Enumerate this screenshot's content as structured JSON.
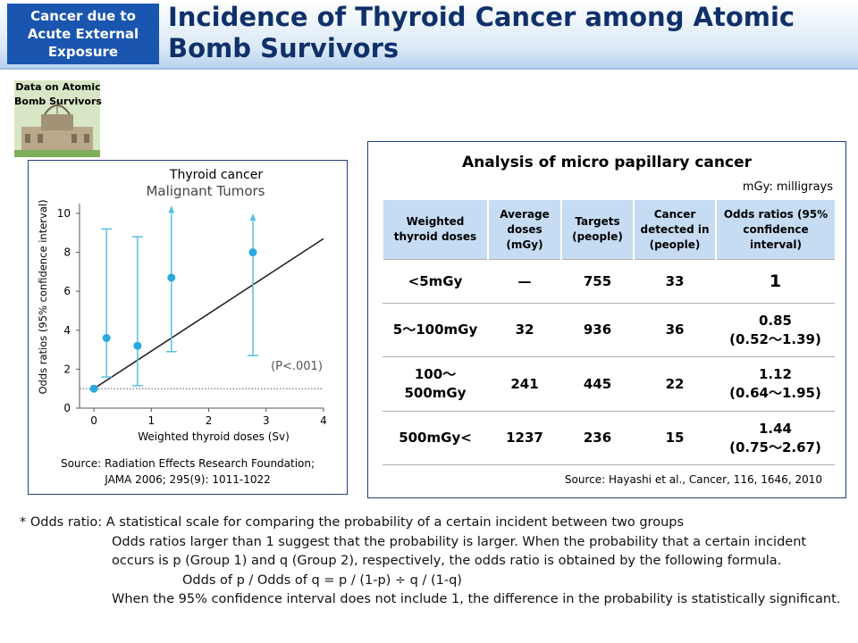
{
  "header": {
    "tag": "Cancer due to Acute External Exposure",
    "title": "Incidence of Thyroid Cancer among Atomic Bomb Survivors"
  },
  "icon_label": "Data on Atomic Bomb Survivors",
  "chart_data": {
    "type": "scatter",
    "title": "Thyroid cancer",
    "subtitle": "Malignant Tumors",
    "xlabel": "Weighted thyroid doses (Sv)",
    "ylabel": "Odds ratios (95% confidence interval)",
    "xlim": [
      -0.25,
      4.0
    ],
    "ylim": [
      0,
      10.5
    ],
    "xticks": [
      0,
      1,
      2,
      3,
      4
    ],
    "yticks": [
      0,
      2,
      4,
      6,
      8,
      10
    ],
    "series": [
      {
        "color": "#29a9e0",
        "x": [
          0,
          0.22,
          0.76,
          1.35,
          2.77
        ],
        "y": [
          1,
          3.6,
          3.2,
          6.7,
          8.0
        ],
        "lower": [
          1,
          1.6,
          1.15,
          2.9,
          2.7
        ],
        "upper": [
          1,
          9.2,
          8.8,
          10.3,
          9.9
        ],
        "upper_open": [
          false,
          false,
          false,
          true,
          true
        ],
        "error_color": "#5bc0de"
      }
    ],
    "fit": {
      "x": [
        0,
        4
      ],
      "y": [
        1,
        8.7
      ],
      "color": "#222222"
    },
    "reference_y": 1,
    "annotation": "(P<.001)",
    "source": [
      "Source: Radiation Effects Research Foundation;",
      "JAMA 2006; 295(9): 1011-1022"
    ]
  },
  "table": {
    "title": "Analysis of micro papillary cancer",
    "unit_note": "mGy: milligrays",
    "columns": [
      "Weighted thyroid doses",
      "Average doses (mGy)",
      "Targets (people)",
      "Cancer detected in (people)",
      "Odds ratios (95% confidence interval)"
    ],
    "rows": [
      [
        "<5mGy",
        "—",
        "755",
        "33",
        "1"
      ],
      [
        "5〜100mGy",
        "32",
        "936",
        "36",
        "0.85\n(0.52〜1.39)"
      ],
      [
        "100〜500mGy",
        "241",
        "445",
        "22",
        "1.12\n(0.64〜1.95)"
      ],
      [
        "500mGy<",
        "1237",
        "236",
        "15",
        "1.44\n(0.75〜2.67)"
      ]
    ],
    "source": "Source: Hayashi et al., Cancer, 116, 1646, 2010"
  },
  "footnote": {
    "label": "* Odds ratio:",
    "definition": "A statistical scale for comparing the probability of a certain incident between two groups",
    "explanation": "Odds ratios larger than 1 suggest that the probability is larger. When the probability that a certain incident occurs is p (Group 1) and q (Group 2), respectively, the odds ratio is obtained by the following formula.",
    "formula": "Odds of p / Odds of q = p / (1-p) ÷ q / (1-q)",
    "significance": "When the 95% confidence interval does not include 1, the difference in the probability is statistically significant."
  }
}
